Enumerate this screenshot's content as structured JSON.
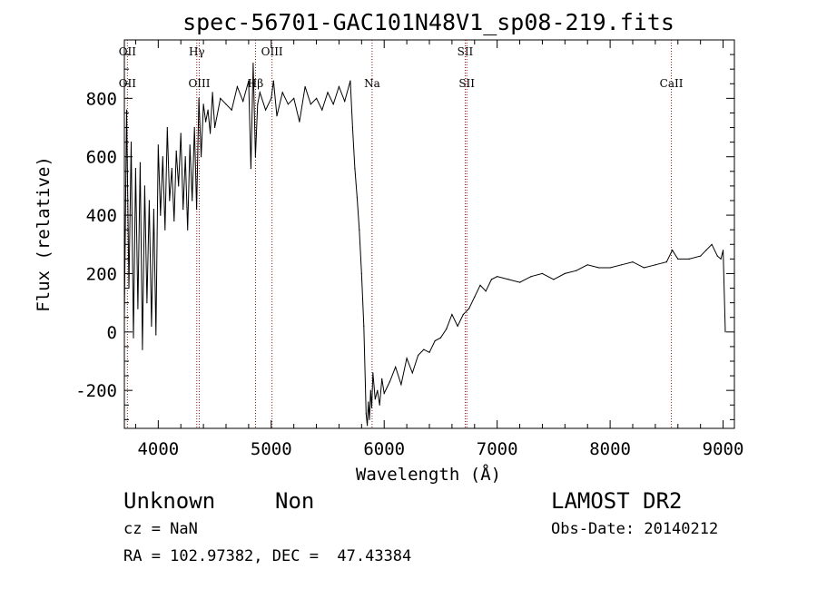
{
  "chart_data": {
    "type": "line",
    "title": "spec-56701-GAC101N48V1_sp08-219.fits",
    "xlabel": "Wavelength (Å)",
    "ylabel": "Flux (relative)",
    "xlim": [
      3700,
      9100
    ],
    "ylim": [
      -330,
      1000
    ],
    "xticks": [
      4000,
      5000,
      6000,
      7000,
      8000,
      9000
    ],
    "yticks": [
      -200,
      0,
      200,
      400,
      600,
      800
    ],
    "series": [
      {
        "x": [
          3700,
          3720,
          3740,
          3760,
          3780,
          3800,
          3820,
          3840,
          3860,
          3880,
          3900,
          3920,
          3940,
          3960,
          3980,
          4000,
          4020,
          4040,
          4060,
          4080,
          4100,
          4120,
          4140,
          4160,
          4180,
          4200,
          4220,
          4240,
          4260,
          4280,
          4300,
          4320,
          4340,
          4360,
          4380,
          4400,
          4420,
          4440,
          4460,
          4480,
          4500,
          4550,
          4600,
          4650,
          4700,
          4750,
          4800,
          4820,
          4840,
          4860,
          4880,
          4900,
          4950,
          5000,
          5020,
          5050,
          5100,
          5150,
          5200,
          5250,
          5300,
          5350,
          5400,
          5450,
          5500,
          5550,
          5600,
          5650,
          5700,
          5720,
          5740,
          5760,
          5780,
          5800,
          5820,
          5840,
          5850,
          5860,
          5870,
          5880,
          5890,
          5900,
          5920,
          5940,
          5960,
          5980,
          6000,
          6050,
          6100,
          6150,
          6200,
          6250,
          6300,
          6350,
          6400,
          6450,
          6500,
          6550,
          6600,
          6650,
          6700,
          6750,
          6800,
          6850,
          6900,
          6950,
          7000,
          7100,
          7200,
          7300,
          7400,
          7500,
          7600,
          7700,
          7800,
          7900,
          8000,
          8100,
          8200,
          8300,
          8400,
          8500,
          8550,
          8600,
          8700,
          8800,
          8850,
          8900,
          8950,
          8980,
          9000,
          9020
        ],
        "y": [
          50,
          760,
          150,
          650,
          -20,
          560,
          80,
          580,
          -60,
          500,
          100,
          450,
          20,
          420,
          -10,
          640,
          400,
          600,
          350,
          700,
          450,
          560,
          380,
          620,
          500,
          680,
          420,
          600,
          350,
          640,
          450,
          700,
          420,
          800,
          600,
          780,
          720,
          760,
          680,
          820,
          700,
          800,
          780,
          760,
          840,
          790,
          860,
          560,
          920,
          600,
          780,
          820,
          760,
          800,
          860,
          740,
          820,
          780,
          800,
          720,
          840,
          780,
          800,
          760,
          820,
          780,
          840,
          790,
          860,
          700,
          560,
          460,
          350,
          200,
          20,
          -280,
          -320,
          -240,
          -300,
          -200,
          -260,
          -140,
          -230,
          -200,
          -250,
          -160,
          -210,
          -170,
          -120,
          -180,
          -90,
          -140,
          -80,
          -60,
          -70,
          -30,
          -20,
          10,
          60,
          20,
          60,
          80,
          120,
          160,
          140,
          180,
          190,
          180,
          170,
          190,
          200,
          180,
          200,
          210,
          230,
          220,
          220,
          230,
          240,
          220,
          230,
          240,
          280,
          250,
          250,
          260,
          280,
          300,
          260,
          250,
          280,
          0
        ]
      }
    ],
    "line_markers": [
      {
        "wavelength": 3727,
        "labels": [
          "OII",
          "OII"
        ]
      },
      {
        "wavelength": 4341,
        "labels": [
          "Hγ",
          ""
        ]
      },
      {
        "wavelength": 4363,
        "labels": [
          "",
          "OIII"
        ]
      },
      {
        "wavelength": 4861,
        "labels": [
          "",
          "Hβ"
        ]
      },
      {
        "wavelength": 5007,
        "labels": [
          "OIII",
          ""
        ]
      },
      {
        "wavelength": 5893,
        "labels": [
          "",
          "Na"
        ]
      },
      {
        "wavelength": 6717,
        "labels": [
          "SII",
          ""
        ]
      },
      {
        "wavelength": 6731,
        "labels": [
          "",
          "SII"
        ]
      },
      {
        "wavelength": 8542,
        "labels": [
          "",
          "CaII"
        ]
      }
    ]
  },
  "info": {
    "class": "Unknown",
    "subclass": "Non",
    "survey": "LAMOST DR2",
    "cz": "cz = NaN",
    "obs_date": "Obs-Date: 20140212",
    "coords": "RA = 102.97382, DEC =  47.43384"
  }
}
